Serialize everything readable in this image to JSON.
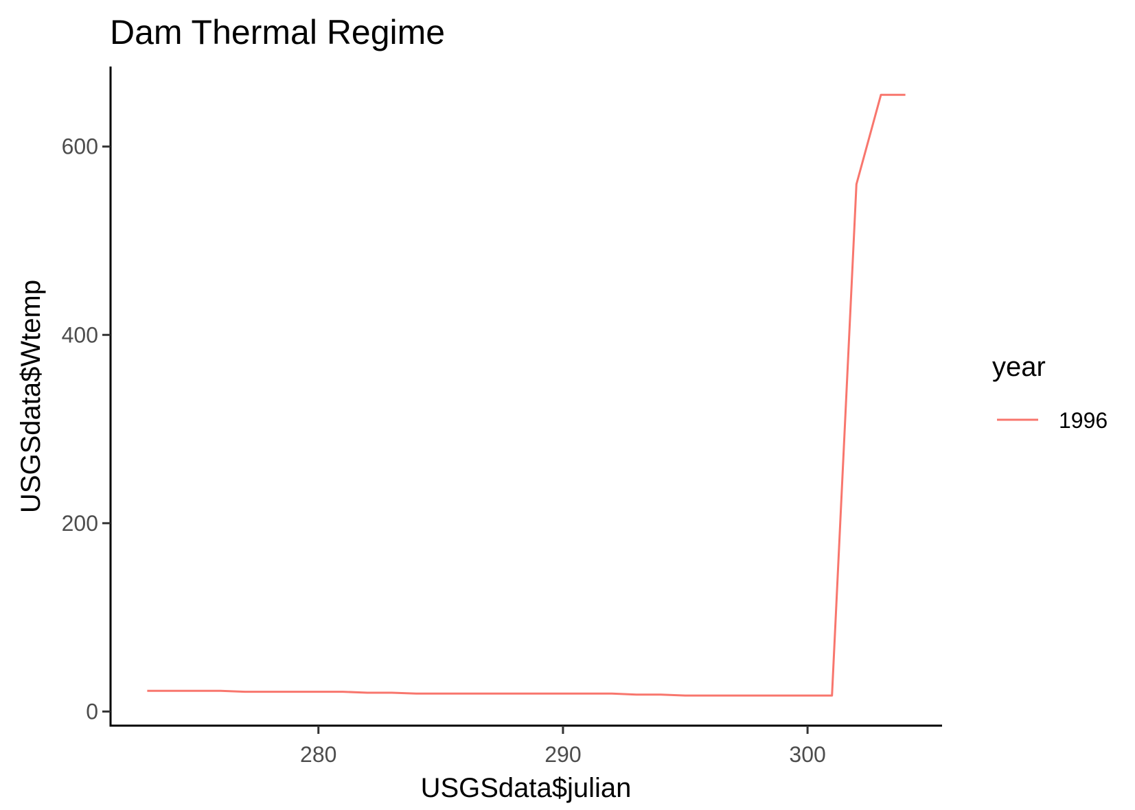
{
  "chart_data": {
    "type": "line",
    "title": "Dam Thermal Regime",
    "xlabel": "USGSdata$julian",
    "ylabel": "USGSdata$Wtemp",
    "xlim": [
      271.5,
      305.5
    ],
    "ylim": [
      -15,
      685
    ],
    "x_ticks": [
      280,
      290,
      300
    ],
    "y_ticks": [
      0,
      200,
      400,
      600
    ],
    "grid": false,
    "legend": {
      "title": "year",
      "position": "right"
    },
    "series": [
      {
        "name": "1996",
        "color": "#F8766D",
        "x": [
          273,
          274,
          275,
          276,
          277,
          278,
          279,
          280,
          281,
          282,
          283,
          284,
          285,
          286,
          287,
          288,
          289,
          290,
          291,
          292,
          293,
          294,
          295,
          296,
          297,
          298,
          299,
          300,
          301,
          302,
          303,
          304
        ],
        "values": [
          22,
          22,
          22,
          22,
          21,
          21,
          21,
          21,
          21,
          20,
          20,
          19,
          19,
          19,
          19,
          19,
          19,
          19,
          19,
          19,
          18,
          18,
          17,
          17,
          17,
          17,
          17,
          17,
          17,
          560,
          655,
          655
        ]
      }
    ]
  }
}
